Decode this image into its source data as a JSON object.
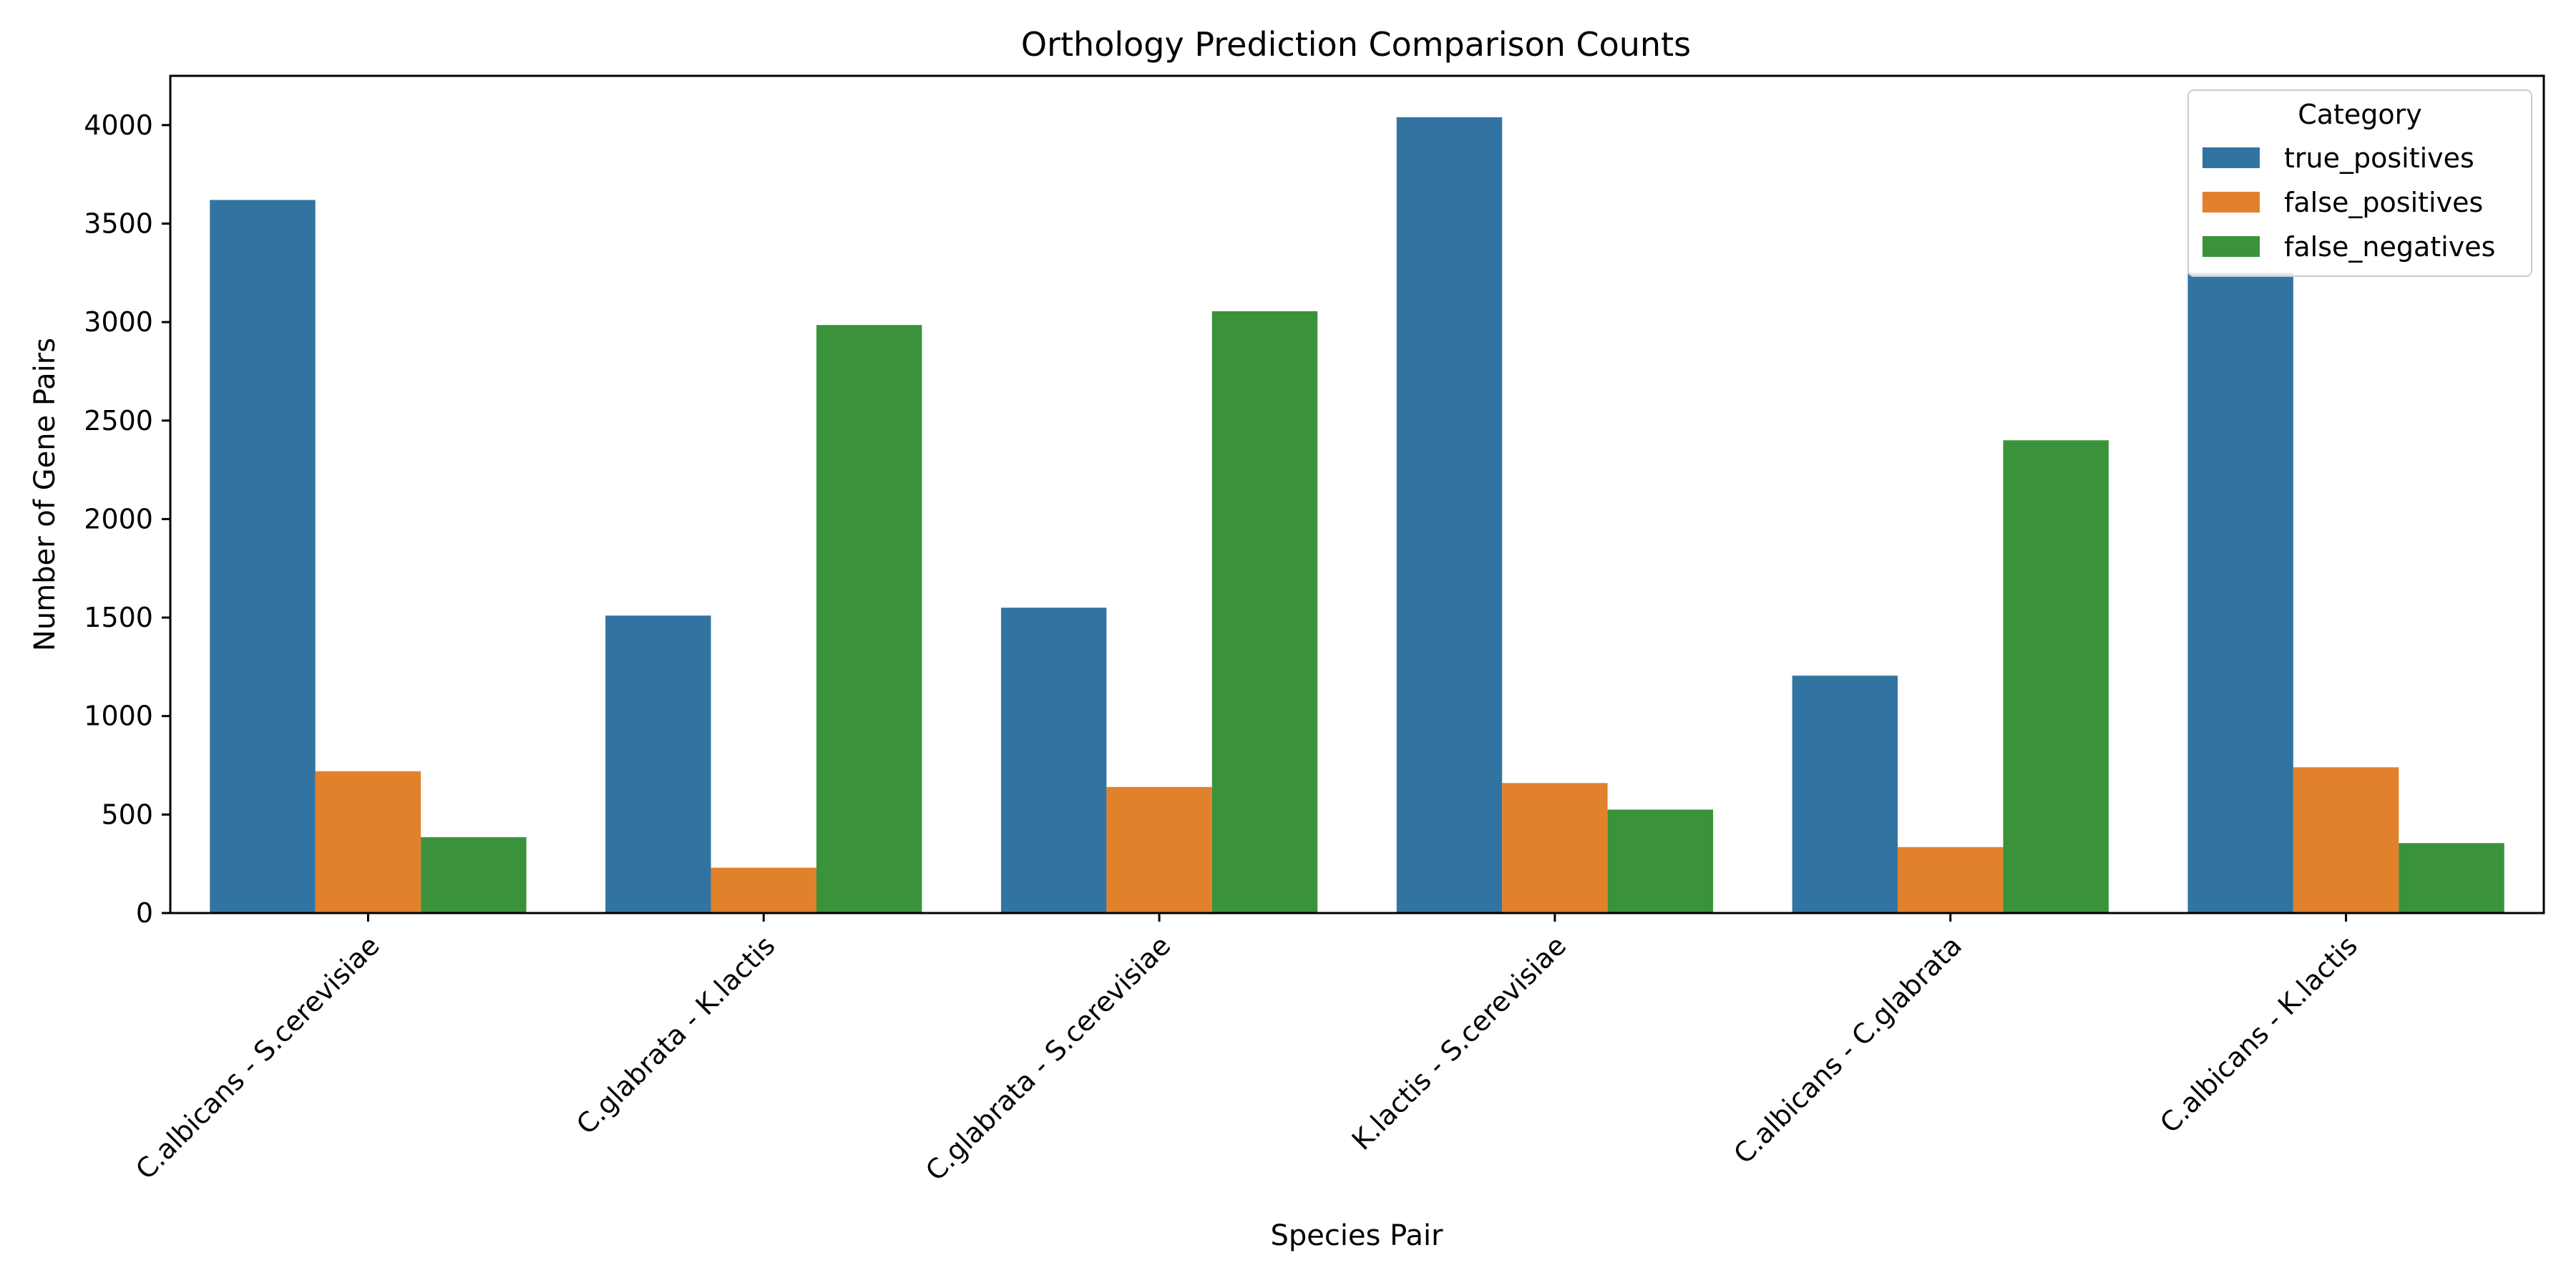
{
  "chart_data": {
    "type": "bar",
    "title": "Orthology Prediction Comparison Counts",
    "xlabel": "Species Pair",
    "ylabel": "Number of Gene Pairs",
    "categories": [
      "C.albicans - S.cerevisiae",
      "C.glabrata - K.lactis",
      "C.glabrata - S.cerevisiae",
      "K.lactis - S.cerevisiae",
      "C.albicans - C.glabrata",
      "C.albicans - K.lactis"
    ],
    "series": [
      {
        "name": "true_positives",
        "color": "#3274a1",
        "values": [
          3620,
          1510,
          1550,
          4040,
          1205,
          3250
        ]
      },
      {
        "name": "false_positives",
        "color": "#e1812c",
        "values": [
          720,
          230,
          640,
          660,
          335,
          740
        ]
      },
      {
        "name": "false_negatives",
        "color": "#3a923a",
        "values": [
          385,
          2985,
          3055,
          525,
          2400,
          355
        ]
      }
    ],
    "ylim": [
      0,
      4250
    ],
    "yticks": [
      0,
      500,
      1000,
      1500,
      2000,
      2500,
      3000,
      3500,
      4000
    ],
    "legend": {
      "title": "Category",
      "placement": "top-right"
    },
    "grid": false
  }
}
